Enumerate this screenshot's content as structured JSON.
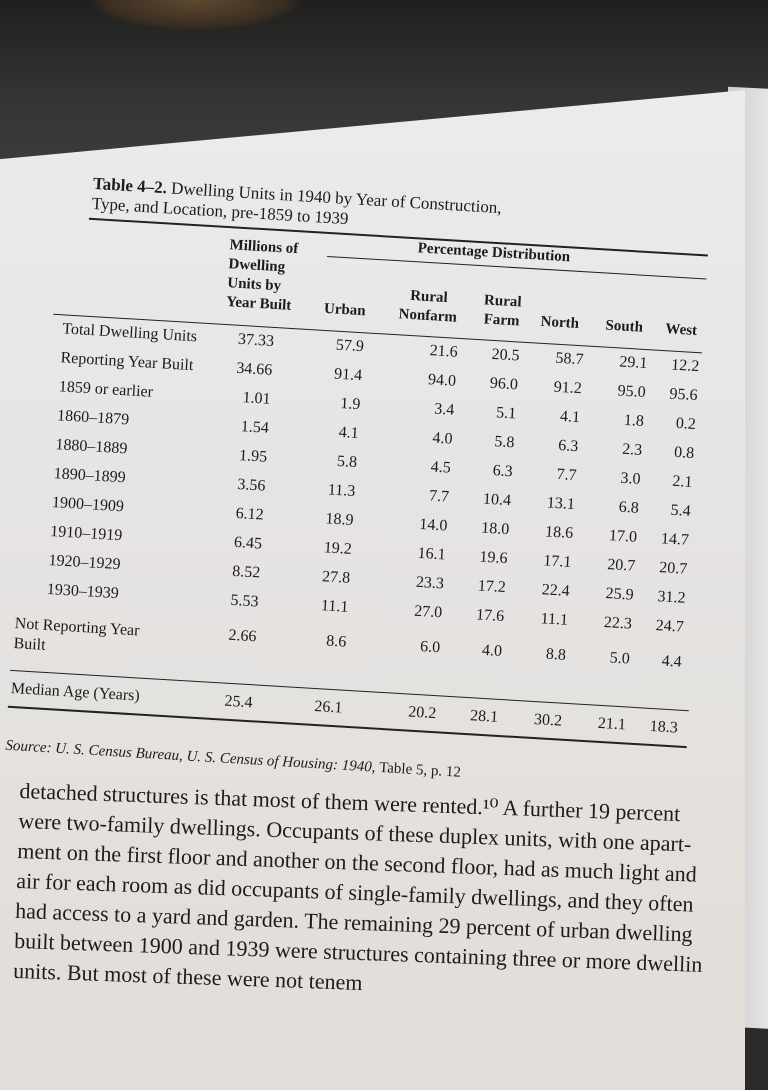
{
  "table": {
    "title_prefix": "Table 4–2.",
    "title_line1": "Dwelling Units in 1940 by Year of Construction,",
    "title_line2": "Type, and Location, pre-1859 to 1939",
    "header_group": "Percentage Distribution",
    "col_millions": [
      "Millions of",
      "Dwelling",
      "Units by",
      "Year Built"
    ],
    "columns": [
      "Urban",
      "Rural Nonfarm",
      "Rural Farm",
      "North",
      "South",
      "West"
    ],
    "rows": [
      {
        "label": "Total Dwelling Units",
        "values": [
          "37.33",
          "57.9",
          "21.6",
          "20.5",
          "58.7",
          "29.1",
          "12.2"
        ]
      },
      {
        "label": "Reporting Year Built",
        "values": [
          "34.66",
          "91.4",
          "94.0",
          "96.0",
          "91.2",
          "95.0",
          "95.6"
        ]
      },
      {
        "label": "1859 or earlier",
        "values": [
          "1.01",
          "1.9",
          "3.4",
          "5.1",
          "4.1",
          "1.8",
          "0.2"
        ]
      },
      {
        "label": "1860–1879",
        "values": [
          "1.54",
          "4.1",
          "4.0",
          "5.8",
          "6.3",
          "2.3",
          "0.8"
        ]
      },
      {
        "label": "1880–1889",
        "values": [
          "1.95",
          "5.8",
          "4.5",
          "6.3",
          "7.7",
          "3.0",
          "2.1"
        ]
      },
      {
        "label": "1890–1899",
        "values": [
          "3.56",
          "11.3",
          "7.7",
          "10.4",
          "13.1",
          "6.8",
          "5.4"
        ]
      },
      {
        "label": "1900–1909",
        "values": [
          "6.12",
          "18.9",
          "14.0",
          "18.0",
          "18.6",
          "17.0",
          "14.7"
        ]
      },
      {
        "label": "1910–1919",
        "values": [
          "6.45",
          "19.2",
          "16.1",
          "19.6",
          "17.1",
          "20.7",
          "20.7"
        ]
      },
      {
        "label": "1920–1929",
        "values": [
          "8.52",
          "27.8",
          "23.3",
          "17.2",
          "22.4",
          "25.9",
          "31.2"
        ]
      },
      {
        "label": "1930–1939",
        "values": [
          "5.53",
          "11.1",
          "27.0",
          "17.6",
          "11.1",
          "22.3",
          "24.7"
        ]
      },
      {
        "label": "Not Reporting Year Built",
        "values": [
          "2.66",
          "8.6",
          "6.0",
          "4.0",
          "8.8",
          "5.0",
          "4.4"
        ]
      },
      {
        "label": "Median Age (Years)",
        "values": [
          "25.4",
          "26.1",
          "20.2",
          "28.1",
          "30.2",
          "21.1",
          "18.3"
        ]
      }
    ],
    "source_label": "Source:",
    "source_agency": "U. S. Census Bureau,",
    "source_title": "U. S. Census of Housing: 1940,",
    "source_ref": "Table 5, p. 12"
  },
  "body_text": [
    "detached structures is that most of them were rented.¹⁰ A further 19 percent",
    "were two-family dwellings. Occupants of these duplex units, with one apart-",
    "ment on the first floor and another on the second floor, had as much light and",
    "air for each room as did occupants of single-family dwellings, and they often",
    "had access to a yard and garden. The remaining 29 percent of urban dwelling",
    "built between 1900 and 1939 were structures containing three or more dwellin",
    "units. But most of these were not tenem"
  ]
}
